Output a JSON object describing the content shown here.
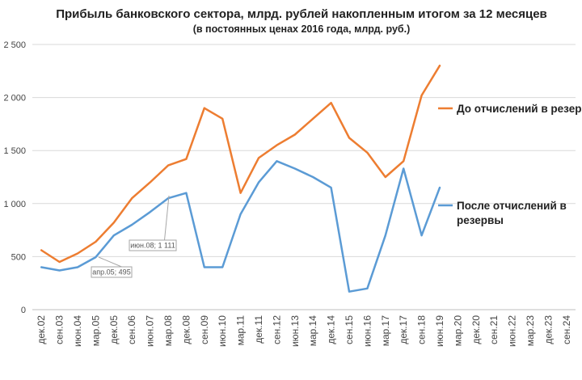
{
  "chart_data": {
    "type": "line",
    "title": "Прибыль банковского  сектора, млрд. рублей накопленным  итогом за 12 месяцев",
    "subtitle": "(в постоянных ценах 2016 года, млрд. руб.)",
    "xlabel": "",
    "ylabel": "",
    "ylim": [
      0,
      2500
    ],
    "yticks": [
      "0",
      "500",
      "1 000",
      "1 500",
      "2 000",
      "2 500"
    ],
    "ytick_values": [
      0,
      500,
      1000,
      1500,
      2000,
      2500
    ],
    "grid": true,
    "legend_position": "right",
    "categories": [
      "дек.02",
      "сен.03",
      "июн.04",
      "мар.05",
      "дек.05",
      "сен.06",
      "июн.07",
      "мар.08",
      "дек.08",
      "сен.09",
      "июн.10",
      "мар.11",
      "дек.11",
      "сен.12",
      "июн.13",
      "мар.14",
      "дек.14",
      "сен.15",
      "июн.16",
      "мар.17",
      "дек.17",
      "сен.18",
      "июн.19",
      "мар.20",
      "дек.20",
      "сен.21",
      "июн.22",
      "мар.23",
      "дек.23",
      "сен.24"
    ],
    "series": [
      {
        "name": "До отчислений в резервы",
        "color": "#ED7D31",
        "points": [
          [
            "дек.02",
            560
          ],
          [
            "сен.03",
            450
          ],
          [
            "июн.04",
            530
          ],
          [
            "мар.05",
            640
          ],
          [
            "дек.05",
            820
          ],
          [
            "сен.06",
            1050
          ],
          [
            "июн.07",
            1200
          ],
          [
            "мар.08",
            1360
          ],
          [
            "дек.08",
            1420
          ],
          [
            "сен.09",
            1900
          ],
          [
            "июн.10",
            1800
          ],
          [
            "мар.11",
            1100
          ],
          [
            "дек.11",
            1430
          ],
          [
            "сен.12",
            1550
          ],
          [
            "июн.13",
            1650
          ],
          [
            "мар.14",
            1800
          ],
          [
            "дек.14",
            1950
          ],
          [
            "сен.15",
            1620
          ],
          [
            "июн.16",
            1480
          ],
          [
            "мар.17",
            1250
          ],
          [
            "дек.17",
            1400
          ],
          [
            "сен.18",
            2020
          ],
          [
            "июн.19",
            2300
          ]
        ]
      },
      {
        "name": "После отчислений в резервы",
        "color": "#5B9BD5",
        "points": [
          [
            "дек.02",
            400
          ],
          [
            "сен.03",
            370
          ],
          [
            "июн.04",
            400
          ],
          [
            "мар.05",
            495
          ],
          [
            "дек.05",
            700
          ],
          [
            "сен.06",
            800
          ],
          [
            "июн.07",
            920
          ],
          [
            "мар.08",
            1050
          ],
          [
            "дек.08",
            1100
          ],
          [
            "сен.09",
            400
          ],
          [
            "июн.10",
            400
          ],
          [
            "мар.11",
            900
          ],
          [
            "дек.11",
            1200
          ],
          [
            "сен.12",
            1400
          ],
          [
            "июн.13",
            1330
          ],
          [
            "мар.14",
            1250
          ],
          [
            "дек.14",
            1150
          ],
          [
            "сен.15",
            170
          ],
          [
            "июн.16",
            200
          ],
          [
            "мар.17",
            700
          ],
          [
            "дек.17",
            1330
          ],
          [
            "сен.18",
            700
          ],
          [
            "июн.19",
            1150
          ]
        ]
      }
    ],
    "annotations": [
      {
        "text": "июн.08; 1 111"
      },
      {
        "text": "апр.05; 495"
      }
    ]
  }
}
